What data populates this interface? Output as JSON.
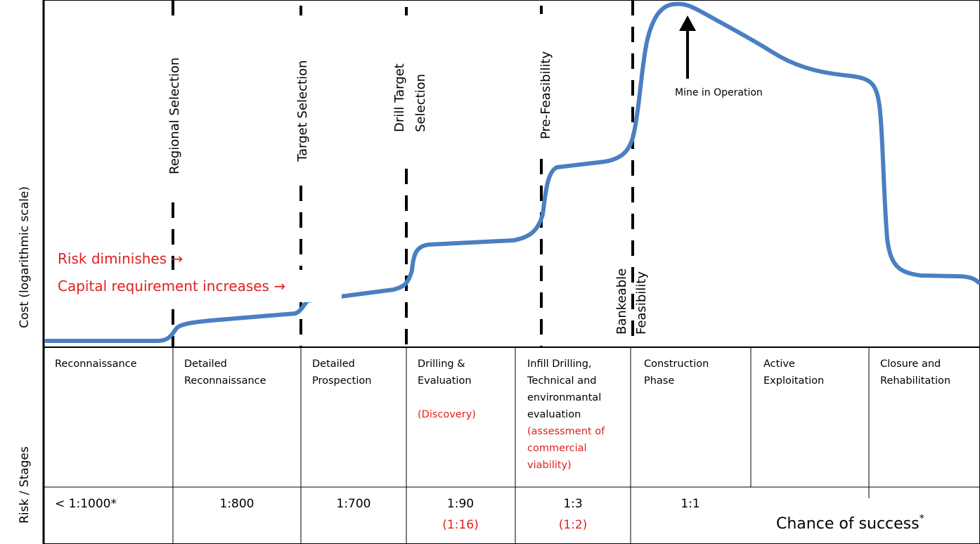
{
  "axes": {
    "y_top_label": "Cost (logarithmic scale)",
    "y_bottom_label": "Risk / Stages"
  },
  "gates": [
    {
      "lines": [
        "Regional Selection"
      ]
    },
    {
      "lines": [
        "Target Selection"
      ]
    },
    {
      "lines": [
        "Drill Target",
        "Selection"
      ]
    },
    {
      "lines": [
        "Pre-Feasibility"
      ]
    },
    {
      "lines": [
        "Bankeable",
        "Feasibility"
      ]
    }
  ],
  "annotations": {
    "risk": "Risk diminishes →",
    "capital": "Capital requirement increases →",
    "mine": "Mine in Operation"
  },
  "stages": [
    {
      "lines": [
        "Reconnaissance"
      ],
      "red": [],
      "ratio": "< 1:1000*",
      "ratio_red": ""
    },
    {
      "lines": [
        "Detailed",
        "Reconnaissance"
      ],
      "red": [],
      "ratio": "1:800",
      "ratio_red": ""
    },
    {
      "lines": [
        "Detailed",
        "Prospection"
      ],
      "red": [],
      "ratio": "1:700",
      "ratio_red": ""
    },
    {
      "lines": [
        "Drilling &",
        "Evaluation"
      ],
      "red": [
        "(Discovery)"
      ],
      "ratio": "1:90",
      "ratio_red": "(1:16)"
    },
    {
      "lines": [
        "Infill Drilling,",
        "Technical and",
        "environmantal",
        "evaluation"
      ],
      "red": [
        "(assessment of",
        "commercial",
        "viability)"
      ],
      "ratio": "1:3",
      "ratio_red": "(1:2)"
    },
    {
      "lines": [
        "Construction",
        "Phase"
      ],
      "red": [],
      "ratio": "1:1",
      "ratio_red": ""
    },
    {
      "lines": [
        "Active",
        "Exploitation"
      ],
      "red": [],
      "ratio": "",
      "ratio_red": ""
    },
    {
      "lines": [
        "Closure and",
        "Rehabilitation"
      ],
      "red": [],
      "ratio": "",
      "ratio_red": ""
    }
  ],
  "success": {
    "text": "Chance of success",
    "mark": "*"
  },
  "colors": {
    "curve": "#4a7fc1",
    "red": "#e02020"
  }
}
